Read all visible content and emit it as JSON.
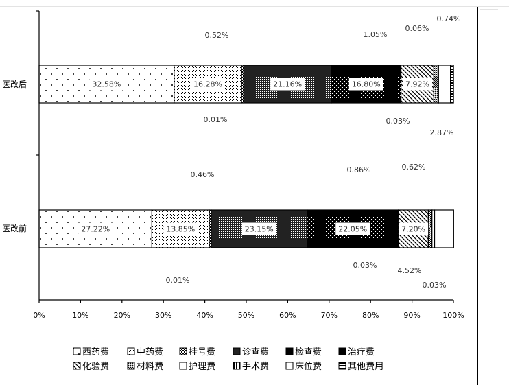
{
  "chart_data": {
    "type": "bar",
    "orientation": "horizontal",
    "stacked": "100%",
    "categories": [
      "医改后",
      "医改前"
    ],
    "series": [
      {
        "name": "西药费",
        "pattern": "dots-sparse",
        "values": [
          32.58,
          27.22
        ],
        "labels": [
          "32.58%",
          "27.22%"
        ]
      },
      {
        "name": "中药费",
        "pattern": "dots-dense",
        "values": [
          16.28,
          13.85
        ],
        "labels": [
          "16.28%",
          "13.85%"
        ]
      },
      {
        "name": "挂号费",
        "pattern": "checker",
        "values": [
          0.52,
          0.46
        ],
        "labels": [
          "0.52%",
          "0.46%"
        ]
      },
      {
        "name": "诊查费",
        "pattern": "checker-dense",
        "values": [
          21.16,
          23.15
        ],
        "labels": [
          "21.16%",
          "23.15%"
        ]
      },
      {
        "name": "检查费",
        "pattern": "dark-dots",
        "values": [
          16.8,
          22.05
        ],
        "labels": [
          "16.80%",
          "22.05%"
        ]
      },
      {
        "name": "治疗费",
        "pattern": "black",
        "values": [
          0.01,
          0.01
        ],
        "labels": [
          "0.01%",
          "0.01%"
        ]
      },
      {
        "name": "化验费",
        "pattern": "diag",
        "values": [
          7.92,
          7.2
        ],
        "labels": [
          "7.92%",
          "7.20%"
        ]
      },
      {
        "name": "材料费",
        "pattern": "diag-dense",
        "values": [
          1.05,
          0.86
        ],
        "labels": [
          "1.05%",
          "0.86%"
        ]
      },
      {
        "name": "护理费",
        "pattern": "white",
        "values": [
          0.03,
          0.03
        ],
        "labels": [
          "0.03%",
          "0.03%"
        ]
      },
      {
        "name": "手术费",
        "pattern": "vstripes",
        "values": [
          0.06,
          0.62
        ],
        "labels": [
          "0.06%",
          "0.62%"
        ]
      },
      {
        "name": "床位费",
        "pattern": "white",
        "values": [
          2.87,
          4.52
        ],
        "labels": [
          "2.87%",
          "4.52%"
        ]
      },
      {
        "name": "其他费用",
        "pattern": "hstripes",
        "values": [
          0.74,
          0.03
        ],
        "labels": [
          "0.74%",
          "0.03%"
        ]
      }
    ],
    "xlim": [
      0,
      100
    ],
    "x_ticks": [
      "0%",
      "10%",
      "20%",
      "30%",
      "40%",
      "50%",
      "60%",
      "70%",
      "80%",
      "90%",
      "100%"
    ],
    "grid": false,
    "legend_position": "bottom"
  }
}
